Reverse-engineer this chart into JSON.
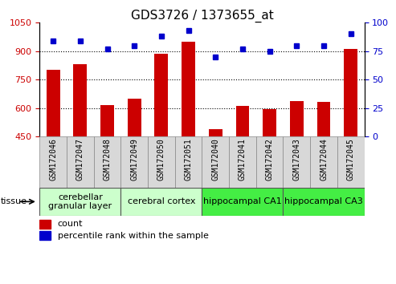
{
  "title": "GDS3726 / 1373655_at",
  "samples": [
    "GSM172046",
    "GSM172047",
    "GSM172048",
    "GSM172049",
    "GSM172050",
    "GSM172051",
    "GSM172040",
    "GSM172041",
    "GSM172042",
    "GSM172043",
    "GSM172044",
    "GSM172045"
  ],
  "counts": [
    800,
    830,
    613,
    650,
    885,
    950,
    488,
    610,
    595,
    638,
    630,
    912
  ],
  "percentiles": [
    84,
    84,
    77,
    80,
    88,
    93,
    70,
    77,
    75,
    80,
    80,
    90
  ],
  "ylim_left": [
    450,
    1050
  ],
  "ylim_right": [
    0,
    100
  ],
  "yticks_left": [
    450,
    600,
    750,
    900,
    1050
  ],
  "yticks_right": [
    0,
    25,
    50,
    75,
    100
  ],
  "bar_color": "#cc0000",
  "dot_color": "#0000cc",
  "bg_plot": "#ffffff",
  "tissue_groups": [
    {
      "label": "cerebellar\ngranular layer",
      "start": 0,
      "end": 3,
      "color": "#ccffcc"
    },
    {
      "label": "cerebral cortex",
      "start": 3,
      "end": 6,
      "color": "#ccffcc"
    },
    {
      "label": "hippocampal CA1",
      "start": 6,
      "end": 9,
      "color": "#44ee44"
    },
    {
      "label": "hippocampal CA3",
      "start": 9,
      "end": 12,
      "color": "#44ee44"
    }
  ],
  "left_label_color": "#cc0000",
  "right_label_color": "#0000cc",
  "title_fontsize": 11,
  "tick_fontsize": 8,
  "sample_fontsize": 7,
  "tissue_fontsize": 8,
  "legend_fontsize": 8
}
